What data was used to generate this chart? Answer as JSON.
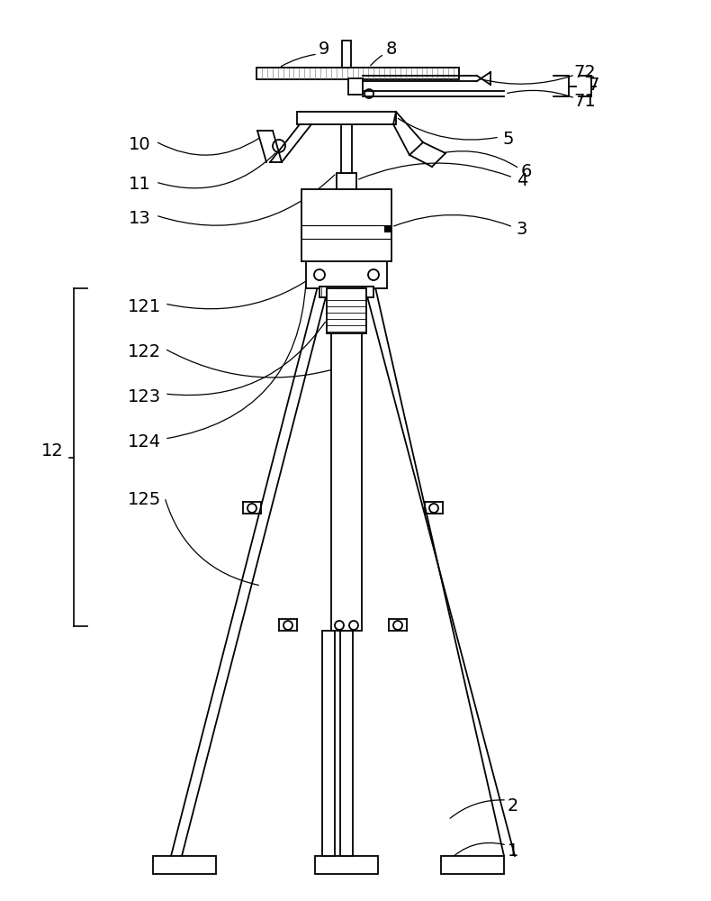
{
  "bg_color": "#ffffff",
  "line_color": "#000000",
  "fig_width": 7.9,
  "fig_height": 10.0,
  "dpi": 100
}
